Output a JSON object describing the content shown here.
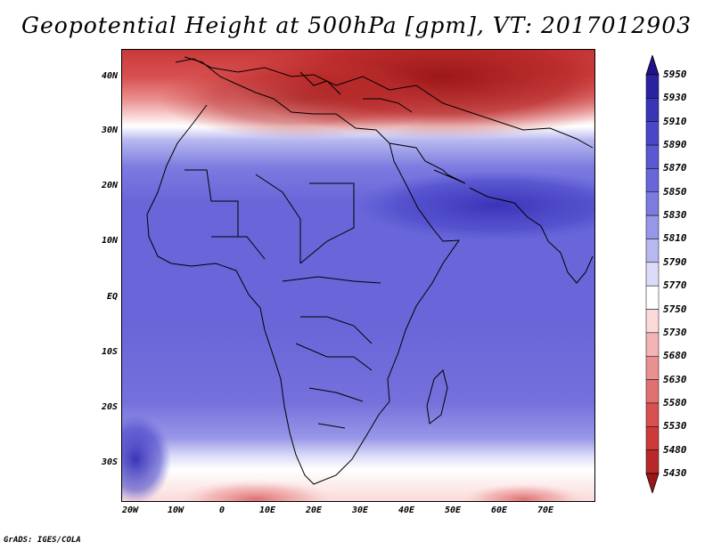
{
  "title": "Geopotential Height at 500hPa [gpm], VT: 2017012903",
  "credit": "GrADS: IGES/COLA",
  "map": {
    "lat_labels": [
      "40N",
      "30N",
      "20N",
      "10N",
      "EQ",
      "10S",
      "20S",
      "30S"
    ],
    "lon_labels": [
      "20W",
      "10W",
      "0",
      "10E",
      "20E",
      "30E",
      "40E",
      "50E",
      "60E",
      "70E"
    ]
  },
  "colorbar": {
    "levels": [
      "5950",
      "5930",
      "5910",
      "5890",
      "5870",
      "5850",
      "5830",
      "5810",
      "5790",
      "5770",
      "5750",
      "5730",
      "5680",
      "5630",
      "5580",
      "5530",
      "5480",
      "5430"
    ],
    "colors": [
      "#22118a",
      "#2a22a0",
      "#3a34b8",
      "#4a46c8",
      "#5a58d2",
      "#6866d8",
      "#7c7be0",
      "#9896e8",
      "#b8b8f0",
      "#dcdcf8",
      "#ffffff",
      "#fadada",
      "#f2b4b4",
      "#ea9090",
      "#e07070",
      "#d85050",
      "#cc3a3a",
      "#b82828",
      "#9c1818"
    ]
  }
}
